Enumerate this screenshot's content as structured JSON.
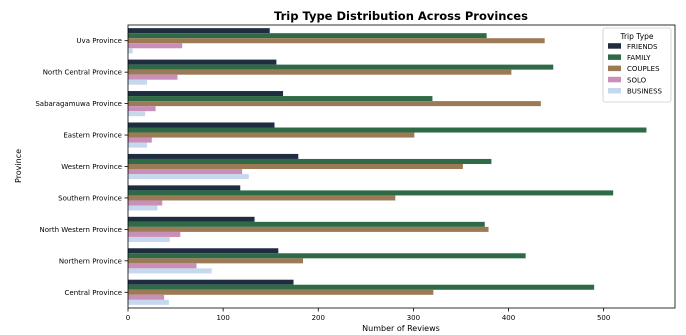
{
  "chart_data": {
    "type": "bar",
    "orientation": "horizontal",
    "title": "Trip Type Distribution Across Provinces",
    "xlabel": "Number of Reviews",
    "ylabel": "Province",
    "xlim": [
      0,
      575
    ],
    "xticks": [
      0,
      100,
      200,
      300,
      400,
      500
    ],
    "grid": false,
    "legend_title": "Trip Type",
    "legend_position": "top-right",
    "categories": [
      "Uva Province",
      "North Central Province",
      "Sabaragamuwa Province",
      "Eastern Province",
      "Western Province",
      "Southern Province",
      "North Western Province",
      "Northern Province",
      "Central Province"
    ],
    "series": [
      {
        "name": "FRIENDS",
        "color": "#1f2d40",
        "values": [
          149,
          156,
          163,
          154,
          179,
          118,
          133,
          158,
          174
        ]
      },
      {
        "name": "FAMILY",
        "color": "#2e6a45",
        "values": [
          377,
          447,
          320,
          545,
          382,
          510,
          375,
          418,
          490
        ]
      },
      {
        "name": "COUPLES",
        "color": "#9c7a55",
        "values": [
          438,
          403,
          434,
          301,
          352,
          281,
          379,
          184,
          321
        ]
      },
      {
        "name": "SOLO",
        "color": "#c98fb8",
        "values": [
          57,
          52,
          29,
          25,
          120,
          36,
          55,
          72,
          38
        ]
      },
      {
        "name": "BUSINESS",
        "color": "#c6d8ee",
        "values": [
          5,
          20,
          18,
          20,
          127,
          31,
          44,
          88,
          43
        ]
      }
    ]
  }
}
